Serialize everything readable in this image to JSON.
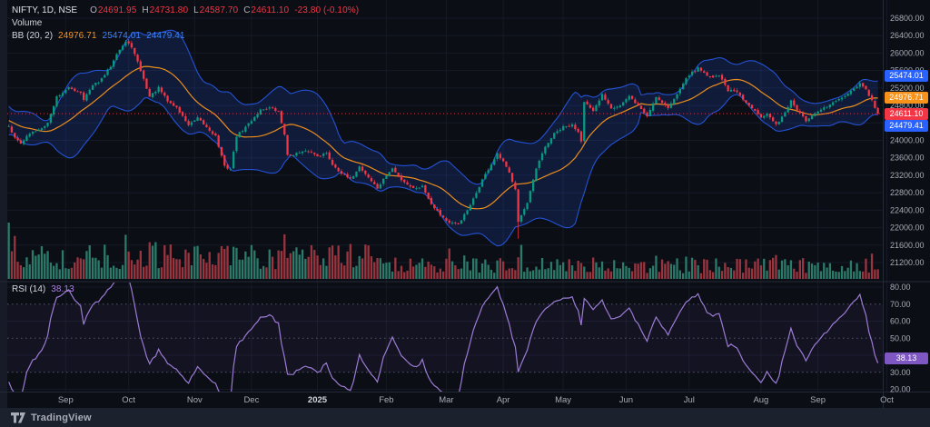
{
  "header": {
    "symbol": "NIFTY, 1D, NSE",
    "ohlc": {
      "o_label": "O",
      "open": "24691.95",
      "h_label": "H",
      "high": "24731.80",
      "l_label": "L",
      "low": "24587.70",
      "c_label": "C",
      "close": "24611.10",
      "change": "-23.80 (-0.10%)"
    },
    "volume_label": "Volume",
    "bb_label": "BB (20, 2)",
    "bb_basis": "24976.71",
    "bb_upper": "25474.01",
    "bb_lower": "24479.41"
  },
  "rsi_legend": {
    "label": "RSI (14)",
    "value": "38.13"
  },
  "footer": {
    "brand": "TradingView"
  },
  "colors": {
    "bg": "#0b0e15",
    "left_strip": "#161b27",
    "grid": "#151a26",
    "separator": "#242936",
    "axis_text": "#a6abb5",
    "year_text": "#d1d4dc",
    "candle_up": "#089981",
    "candle_down": "#f23645",
    "vol_up": "#2c7a6a",
    "vol_down": "#99353f",
    "bb_fill": "rgba(42,98,255,0.16)",
    "bb_line": "#2962ff",
    "bb_basis": "#f7931a",
    "last_price_line": "#f23645",
    "rsi_line": "#9c7bd4",
    "rsi_level": "#8b8fa3",
    "rsi_zone_fill": "rgba(126,87,194,0.08)",
    "badge_blue": "#2962ff",
    "badge_orange": "#f7931a",
    "badge_red": "#f23645",
    "badge_purple": "#7e57c2"
  },
  "chart_data": {
    "type": "candlestick",
    "title": "NIFTY, 1D, NSE",
    "interval": "1D",
    "panels": [
      "price + Bollinger Bands (20,2) + volume",
      "RSI (14)"
    ],
    "ohlc_last": {
      "open": 24691.95,
      "high": 24731.8,
      "low": 24587.7,
      "close": 24611.1,
      "change": -23.8,
      "change_pct": -0.1
    },
    "bollinger": {
      "period": 20,
      "stdev": 2,
      "basis": 24976.71,
      "upper": 25474.01,
      "lower": 24479.41
    },
    "rsi": {
      "period": 14,
      "value": 38.13,
      "levels_dashed": [
        70,
        50,
        30
      ]
    },
    "ylim": [
      20800,
      27250
    ],
    "price_grid_step": 400,
    "price_axis_tick_values": [
      26800,
      26400,
      26000,
      25600,
      25200,
      24800,
      24000,
      23600,
      23200,
      22800,
      22400,
      22000,
      21600,
      21200
    ],
    "price_grid_values": [
      26800,
      26400,
      26000,
      25600,
      25200,
      24800,
      24400,
      24000,
      23600,
      23200,
      22800,
      22400,
      22000,
      21600,
      21200
    ],
    "rsi_axis_tick_values": [
      80,
      70,
      60,
      50,
      30,
      20
    ],
    "rsi_grid_values": [
      20,
      40,
      60,
      80
    ],
    "time_ticks": [
      {
        "label": "Sep",
        "day": 19
      },
      {
        "label": "Oct",
        "day": 40
      },
      {
        "label": "Nov",
        "day": 62
      },
      {
        "label": "Dec",
        "day": 81
      },
      {
        "label": "2025",
        "day": 103,
        "year": true
      },
      {
        "label": "Feb",
        "day": 126
      },
      {
        "label": "Mar",
        "day": 146
      },
      {
        "label": "Apr",
        "day": 165
      },
      {
        "label": "May",
        "day": 185
      },
      {
        "label": "Jun",
        "day": 206
      },
      {
        "label": "Jul",
        "day": 227
      },
      {
        "label": "Aug",
        "day": 251
      },
      {
        "label": "Sep",
        "day": 270
      },
      {
        "label": "Oct",
        "day": 293
      }
    ],
    "days": 291,
    "note": "close_path_anchors are [trading-day index, close] points read off the chart; negative days are off-screen warmup used only to seed the 20-day Bollinger and 14-day RSI calculations.",
    "close_path_anchors": [
      [
        -25,
        25150
      ],
      [
        -20,
        24950
      ],
      [
        -14,
        24350
      ],
      [
        -10,
        24600
      ],
      [
        -5,
        24250
      ],
      [
        0,
        24350
      ],
      [
        2,
        24050
      ],
      [
        4,
        23950
      ],
      [
        7,
        24150
      ],
      [
        10,
        24250
      ],
      [
        13,
        24400
      ],
      [
        16,
        25000
      ],
      [
        20,
        25200
      ],
      [
        24,
        25100
      ],
      [
        25,
        24950
      ],
      [
        28,
        25250
      ],
      [
        31,
        25400
      ],
      [
        34,
        25700
      ],
      [
        36,
        26000
      ],
      [
        39,
        26250
      ],
      [
        41,
        26150
      ],
      [
        44,
        25600
      ],
      [
        47,
        25000
      ],
      [
        50,
        25200
      ],
      [
        53,
        24900
      ],
      [
        56,
        24750
      ],
      [
        60,
        24350
      ],
      [
        63,
        24500
      ],
      [
        66,
        24300
      ],
      [
        69,
        24100
      ],
      [
        72,
        23400
      ],
      [
        74,
        23350
      ],
      [
        76,
        24100
      ],
      [
        79,
        24300
      ],
      [
        84,
        24700
      ],
      [
        87,
        24750
      ],
      [
        90,
        24650
      ],
      [
        92,
        24150
      ],
      [
        93,
        23650
      ],
      [
        96,
        23700
      ],
      [
        100,
        23750
      ],
      [
        103,
        23650
      ],
      [
        106,
        23700
      ],
      [
        108,
        23450
      ],
      [
        111,
        23250
      ],
      [
        114,
        23100
      ],
      [
        117,
        23400
      ],
      [
        120,
        23150
      ],
      [
        123,
        22900
      ],
      [
        126,
        23200
      ],
      [
        128,
        23350
      ],
      [
        131,
        23100
      ],
      [
        135,
        22900
      ],
      [
        138,
        22950
      ],
      [
        141,
        22550
      ],
      [
        144,
        22300
      ],
      [
        147,
        22100
      ],
      [
        150,
        22080
      ],
      [
        154,
        22500
      ],
      [
        158,
        23100
      ],
      [
        163,
        23680
      ],
      [
        165,
        23500
      ],
      [
        167,
        23250
      ],
      [
        169,
        22900
      ],
      [
        170,
        22150
      ],
      [
        173,
        22550
      ],
      [
        176,
        23350
      ],
      [
        179,
        23850
      ],
      [
        182,
        24150
      ],
      [
        185,
        24300
      ],
      [
        188,
        24350
      ],
      [
        190,
        24200
      ],
      [
        191,
        24000
      ],
      [
        192,
        24900
      ],
      [
        195,
        24650
      ],
      [
        198,
        25050
      ],
      [
        201,
        24750
      ],
      [
        204,
        24800
      ],
      [
        207,
        25000
      ],
      [
        210,
        24800
      ],
      [
        213,
        24550
      ],
      [
        216,
        25000
      ],
      [
        220,
        24750
      ],
      [
        223,
        25050
      ],
      [
        226,
        25450
      ],
      [
        230,
        25650
      ],
      [
        234,
        25450
      ],
      [
        237,
        25500
      ],
      [
        240,
        25150
      ],
      [
        243,
        25100
      ],
      [
        246,
        24850
      ],
      [
        249,
        24700
      ],
      [
        251,
        24550
      ],
      [
        253,
        24600
      ],
      [
        256,
        24350
      ],
      [
        259,
        24650
      ],
      [
        261,
        24900
      ],
      [
        264,
        24600
      ],
      [
        266,
        24450
      ],
      [
        268,
        24550
      ],
      [
        271,
        24700
      ],
      [
        276,
        24900
      ],
      [
        280,
        25050
      ],
      [
        284,
        25300
      ],
      [
        286,
        25150
      ],
      [
        288,
        24900
      ],
      [
        289,
        24750
      ],
      [
        290,
        24611.1
      ]
    ],
    "high_events": [
      [
        39,
        26280
      ]
    ],
    "low_events": [
      [
        170,
        21743
      ]
    ],
    "volume_spikes": {
      "0": 2.1,
      "2": 1.4,
      "16": 1.5,
      "25": 1.7,
      "39": 1.6,
      "47": 1.8,
      "49": 1.9,
      "72": 1.6,
      "76": 1.7,
      "79": 1.5,
      "92": 1.6,
      "97": 1.8,
      "114": 1.5,
      "118": 1.6,
      "147": 1.7,
      "152": 1.6,
      "158": 1.4,
      "170": 2.2,
      "171": 1.6,
      "176": 1.4,
      "192": 1.8,
      "216": 1.4,
      "226": 1.3,
      "256": 1.4,
      "261": 1.3,
      "284": 1.3,
      "288": 1.4
    },
    "price_badges": [
      {
        "name": "bb-upper-badge",
        "value": 25474.01,
        "color_key": "badge_blue"
      },
      {
        "name": "bb-basis-badge",
        "value": 24976.71,
        "color_key": "badge_orange"
      },
      {
        "name": "last-price-badge",
        "value": 24611.1,
        "color_key": "badge_red"
      },
      {
        "name": "bb-lower-badge",
        "value": 24479.41,
        "color_key": "badge_blue"
      }
    ],
    "rsi_badge": {
      "name": "rsi-value-badge",
      "value": 38.13,
      "color_key": "badge_purple"
    }
  }
}
